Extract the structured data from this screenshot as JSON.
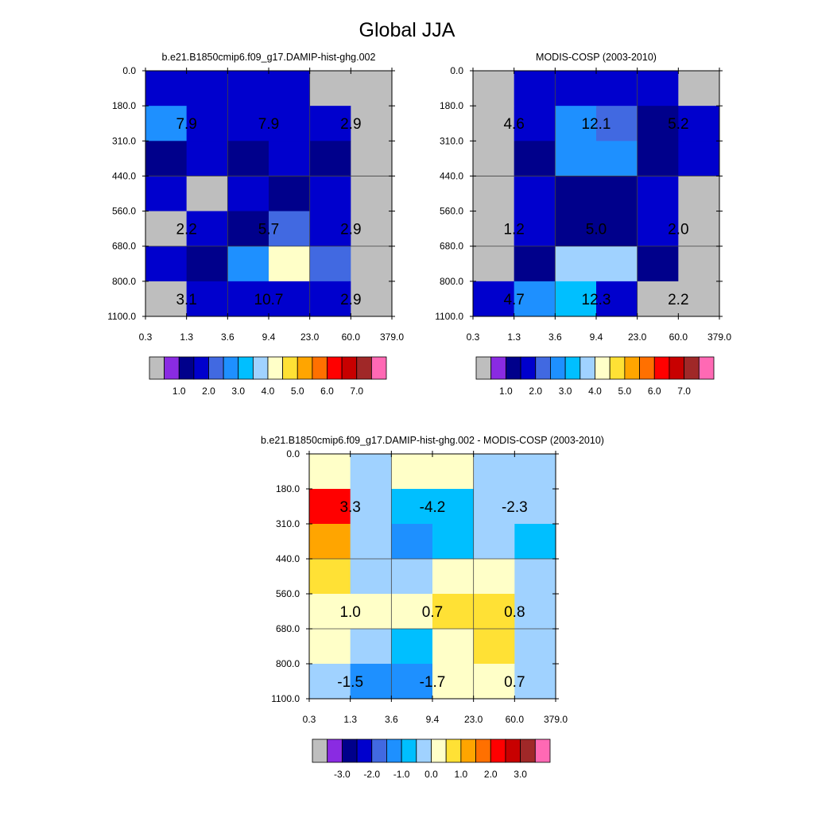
{
  "figure_title": "Global JJA",
  "chart_data": [
    {
      "type": "heatmap",
      "title": "b.e21.B1850cmip6.f09_g17.DAMIP-hist-ghg.002",
      "x_ticks": [
        "0.3",
        "1.3",
        "3.6",
        "9.4",
        "23.0",
        "60.0",
        "379.0"
      ],
      "y_ticks": [
        "0.0",
        "180.0",
        "310.0",
        "440.0",
        "560.0",
        "680.0",
        "800.0",
        "1100.0"
      ],
      "cell_values": [
        [
          1.5,
          1.5,
          1.5,
          1.5,
          0,
          0
        ],
        [
          2.5,
          1.8,
          1.8,
          1.8,
          1.5,
          0
        ],
        [
          1.2,
          1.5,
          1.2,
          1.8,
          1.2,
          0
        ],
        [
          1.5,
          0,
          1.5,
          1.2,
          1.5,
          0
        ],
        [
          0,
          1.5,
          1.2,
          2.2,
          1.8,
          0
        ],
        [
          1.5,
          1.2,
          2.5,
          4.2,
          2.2,
          0
        ],
        [
          0,
          1.5,
          1.8,
          1.8,
          1.5,
          0
        ]
      ],
      "annotations": [
        {
          "text": "7.9",
          "col_from": 0,
          "col_to": 2,
          "row": 1
        },
        {
          "text": "7.9",
          "col_from": 2,
          "col_to": 4,
          "row": 1
        },
        {
          "text": "2.9",
          "col_from": 4,
          "col_to": 6,
          "row": 1
        },
        {
          "text": "2.2",
          "col_from": 0,
          "col_to": 2,
          "row": 4
        },
        {
          "text": "5.7",
          "col_from": 2,
          "col_to": 4,
          "row": 4
        },
        {
          "text": "2.9",
          "col_from": 4,
          "col_to": 6,
          "row": 4
        },
        {
          "text": "3.1",
          "col_from": 0,
          "col_to": 2,
          "row": 6
        },
        {
          "text": "10.7",
          "col_from": 2,
          "col_to": 4,
          "row": 6
        },
        {
          "text": "2.9",
          "col_from": 4,
          "col_to": 6,
          "row": 6
        }
      ],
      "colorbar": {
        "colors": [
          "#bebebe",
          "#8a2be2",
          "#00008b",
          "#0000cd",
          "#4169e1",
          "#1e90ff",
          "#00bfff",
          "#a0d2ff",
          "#ffffc8",
          "#ffe135",
          "#ffa500",
          "#ff7000",
          "#ff0000",
          "#c80000",
          "#a02828",
          "#ff69b4"
        ],
        "labels": [
          "1.0",
          "2.0",
          "3.0",
          "4.0",
          "5.0",
          "6.0",
          "7.0"
        ],
        "levels": [
          0.5,
          1.0,
          1.5,
          2.0,
          2.5,
          3.0,
          3.5,
          4.0,
          4.5,
          5.0,
          5.5,
          6.0,
          6.5,
          7.0,
          7.5
        ]
      }
    },
    {
      "type": "heatmap",
      "title": "MODIS-COSP (2003-2010)",
      "x_ticks": [
        "0.3",
        "1.3",
        "3.6",
        "9.4",
        "23.0",
        "60.0",
        "379.0"
      ],
      "y_ticks": [
        "0.0",
        "180.0",
        "310.0",
        "440.0",
        "560.0",
        "680.0",
        "800.0",
        "1100.0"
      ],
      "cell_values": [
        [
          0,
          1.5,
          1.5,
          1.5,
          1.5,
          0
        ],
        [
          0,
          1.8,
          2.8,
          2.2,
          1.2,
          1.5
        ],
        [
          0,
          1.2,
          2.8,
          2.8,
          1.2,
          1.5
        ],
        [
          0,
          1.5,
          1.2,
          1.2,
          1.5,
          0
        ],
        [
          0,
          1.5,
          1.2,
          1.2,
          1.5,
          0
        ],
        [
          0,
          1.2,
          3.8,
          3.8,
          1.2,
          0
        ],
        [
          1.5,
          2.8,
          3.2,
          1.8,
          0,
          0
        ]
      ],
      "annotations": [
        {
          "text": "4.6",
          "col_from": 0,
          "col_to": 2,
          "row": 1
        },
        {
          "text": "12.1",
          "col_from": 2,
          "col_to": 4,
          "row": 1
        },
        {
          "text": "5.2",
          "col_from": 4,
          "col_to": 6,
          "row": 1
        },
        {
          "text": "1.2",
          "col_from": 0,
          "col_to": 2,
          "row": 4
        },
        {
          "text": "5.0",
          "col_from": 2,
          "col_to": 4,
          "row": 4
        },
        {
          "text": "2.0",
          "col_from": 4,
          "col_to": 6,
          "row": 4
        },
        {
          "text": "4.7",
          "col_from": 0,
          "col_to": 2,
          "row": 6
        },
        {
          "text": "12.3",
          "col_from": 2,
          "col_to": 4,
          "row": 6
        },
        {
          "text": "2.2",
          "col_from": 4,
          "col_to": 6,
          "row": 6
        }
      ],
      "colorbar": {
        "colors": [
          "#bebebe",
          "#8a2be2",
          "#00008b",
          "#0000cd",
          "#4169e1",
          "#1e90ff",
          "#00bfff",
          "#a0d2ff",
          "#ffffc8",
          "#ffe135",
          "#ffa500",
          "#ff7000",
          "#ff0000",
          "#c80000",
          "#a02828",
          "#ff69b4"
        ],
        "labels": [
          "1.0",
          "2.0",
          "3.0",
          "4.0",
          "5.0",
          "6.0",
          "7.0"
        ],
        "levels": [
          0.5,
          1.0,
          1.5,
          2.0,
          2.5,
          3.0,
          3.5,
          4.0,
          4.5,
          5.0,
          5.5,
          6.0,
          6.5,
          7.0,
          7.5
        ]
      }
    },
    {
      "type": "heatmap",
      "title": "b.e21.B1850cmip6.f09_g17.DAMIP-hist-ghg.002 - MODIS-COSP (2003-2010)",
      "x_ticks": [
        "0.3",
        "1.3",
        "3.6",
        "9.4",
        "23.0",
        "60.0",
        "379.0"
      ],
      "y_ticks": [
        "0.0",
        "180.0",
        "310.0",
        "440.0",
        "560.0",
        "680.0",
        "800.0",
        "1100.0"
      ],
      "cell_values": [
        [
          0.3,
          -0.3,
          0.3,
          0.3,
          -0.3,
          -0.3
        ],
        [
          2.3,
          -0.3,
          -0.8,
          -0.8,
          -0.3,
          -0.3
        ],
        [
          1.3,
          -0.3,
          -1.3,
          -1.0,
          -0.3,
          -0.8
        ],
        [
          0.8,
          -0.3,
          -0.3,
          0.3,
          0.3,
          -0.3
        ],
        [
          0.3,
          0.3,
          0.3,
          0.8,
          0.8,
          -0.3
        ],
        [
          0.3,
          -0.3,
          -0.8,
          0.3,
          0.8,
          -0.3
        ],
        [
          -0.3,
          -1.3,
          -1.3,
          0.3,
          0.3,
          -0.3
        ]
      ],
      "annotations": [
        {
          "text": "3.3",
          "col_from": 0,
          "col_to": 2,
          "row": 1
        },
        {
          "text": "-4.2",
          "col_from": 2,
          "col_to": 4,
          "row": 1
        },
        {
          "text": "-2.3",
          "col_from": 4,
          "col_to": 6,
          "row": 1
        },
        {
          "text": "1.0",
          "col_from": 0,
          "col_to": 2,
          "row": 4
        },
        {
          "text": "0.7",
          "col_from": 2,
          "col_to": 4,
          "row": 4
        },
        {
          "text": "0.8",
          "col_from": 4,
          "col_to": 6,
          "row": 4
        },
        {
          "text": "-1.5",
          "col_from": 0,
          "col_to": 2,
          "row": 6
        },
        {
          "text": "-1.7",
          "col_from": 2,
          "col_to": 4,
          "row": 6
        },
        {
          "text": "0.7",
          "col_from": 4,
          "col_to": 6,
          "row": 6
        }
      ],
      "colorbar": {
        "colors": [
          "#bebebe",
          "#8a2be2",
          "#00008b",
          "#0000cd",
          "#4169e1",
          "#1e90ff",
          "#00bfff",
          "#a0d2ff",
          "#ffffc8",
          "#ffe135",
          "#ffa500",
          "#ff7000",
          "#ff0000",
          "#c80000",
          "#a02828",
          "#ff69b4"
        ],
        "labels": [
          "-3.0",
          "-2.0",
          "-1.0",
          "0.0",
          "1.0",
          "2.0",
          "3.0"
        ],
        "levels": [
          -3.5,
          -3.0,
          -2.5,
          -2.0,
          -1.5,
          -1.0,
          -0.5,
          0.0,
          0.5,
          1.0,
          1.5,
          2.0,
          2.5,
          3.0,
          3.5
        ]
      }
    }
  ]
}
